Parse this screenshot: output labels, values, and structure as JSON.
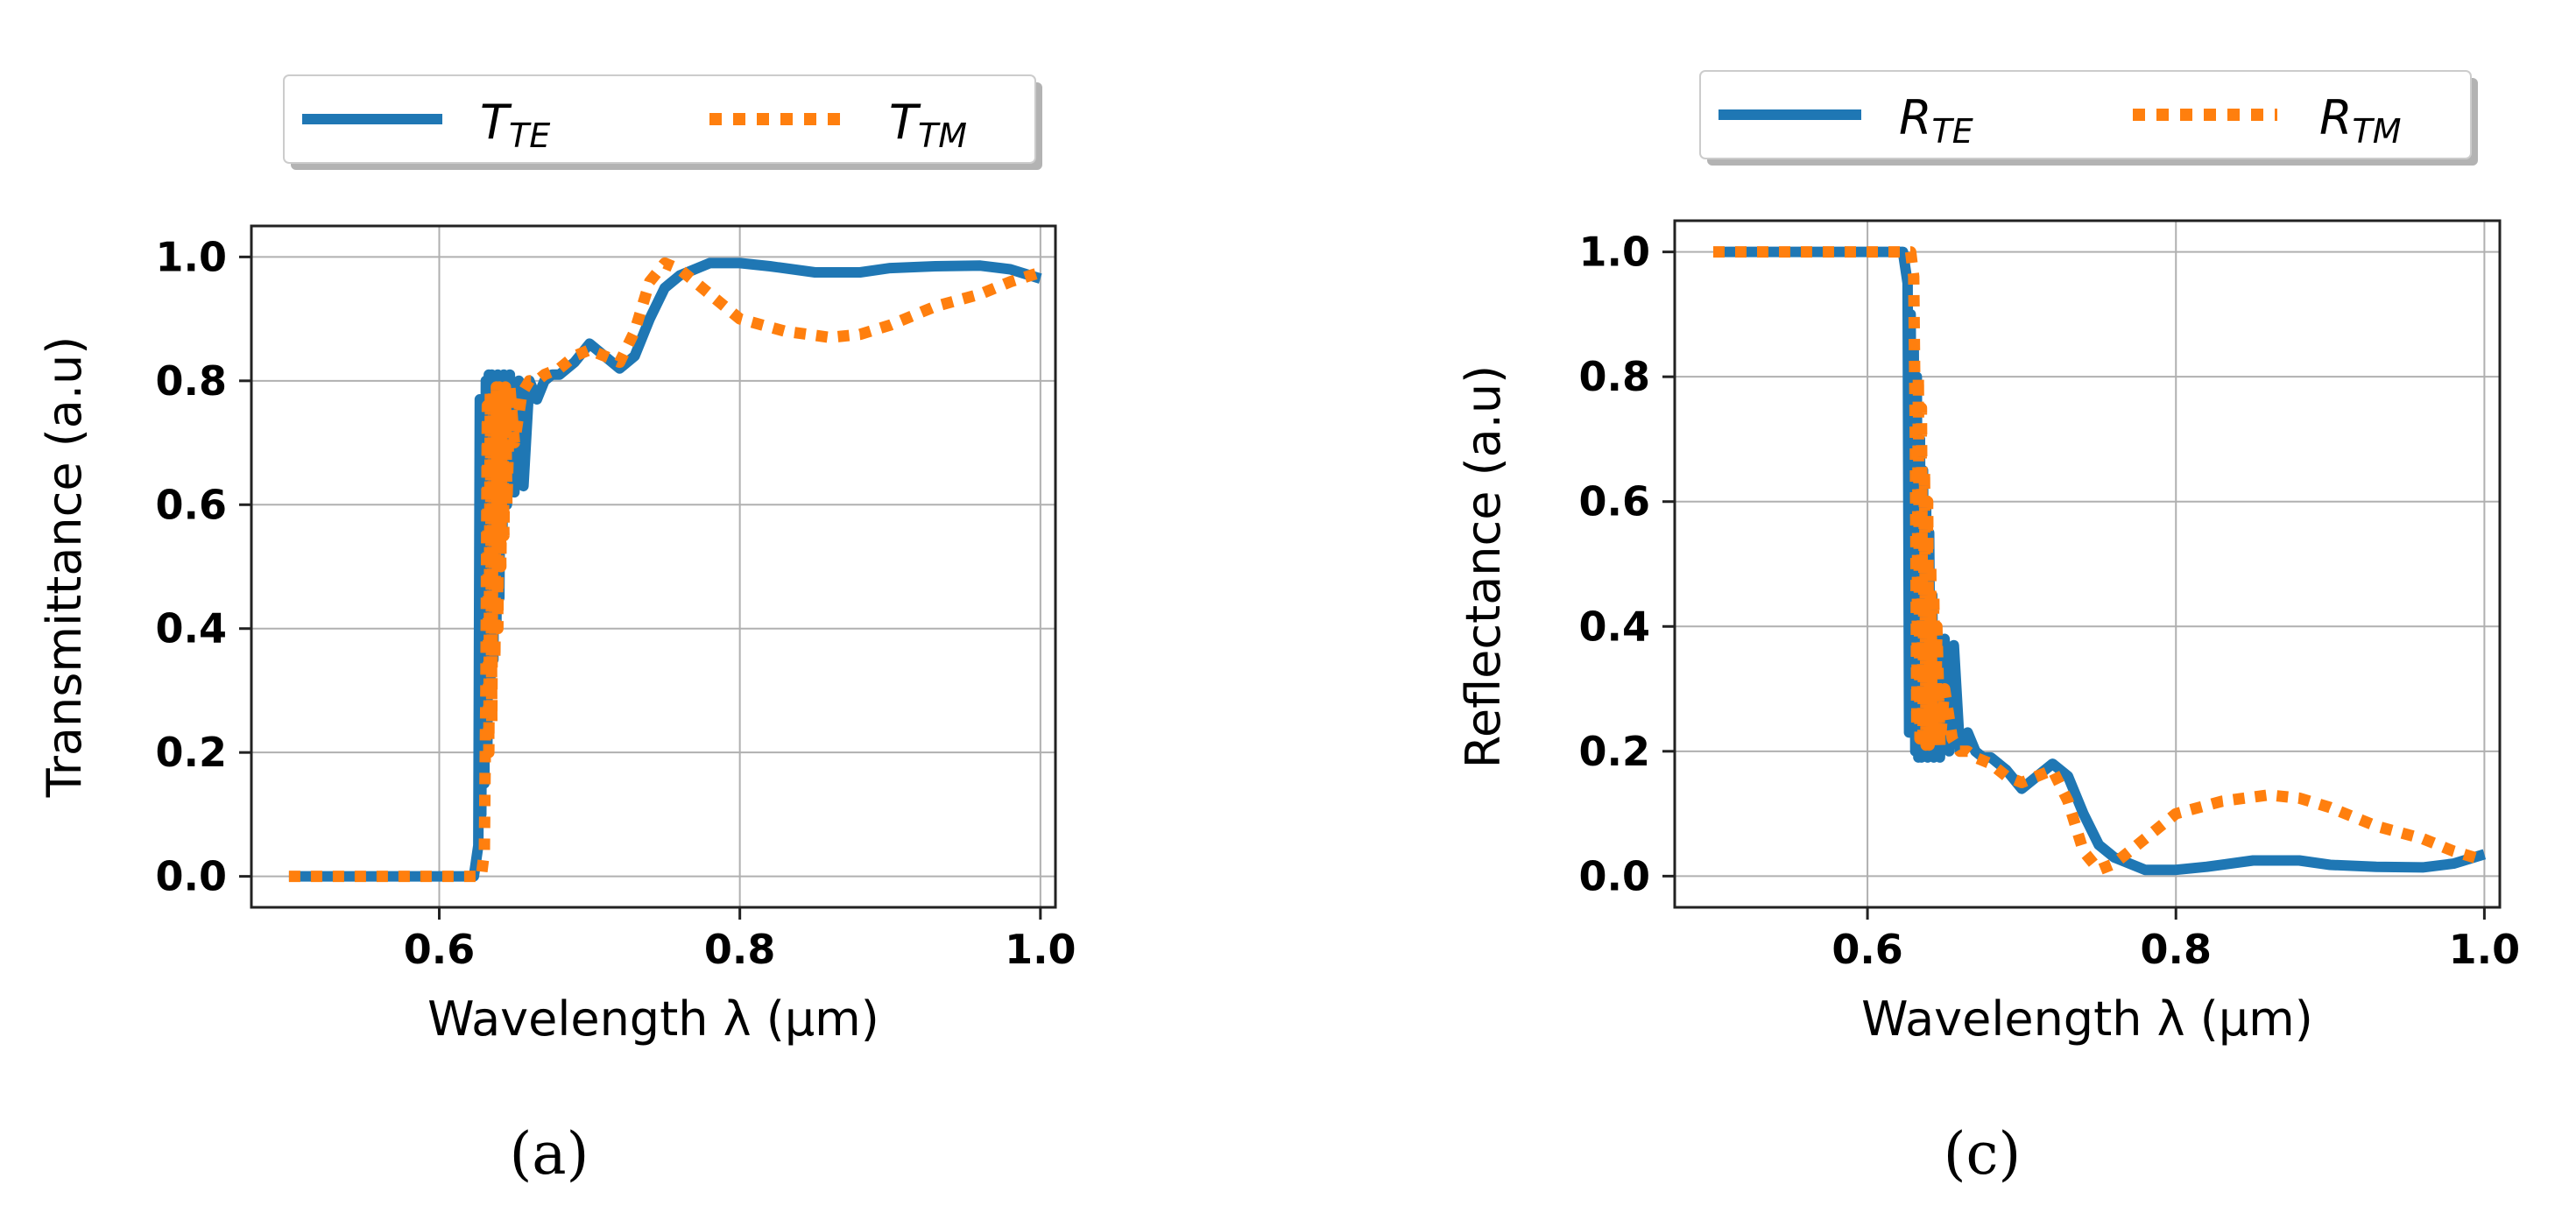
{
  "colors": {
    "te": "#1f77b4",
    "tm": "#ff7f0e",
    "grid": "#b0b0b0"
  },
  "chart_data": [
    {
      "type": "line",
      "panel": "a",
      "caption": "(a)",
      "xlabel": "Wavelength λ (μm)",
      "ylabel": "Transmittance (a.u)",
      "xlim": [
        0.475,
        1.01
      ],
      "ylim": [
        -0.05,
        1.05
      ],
      "xticks": [
        "0.6",
        "0.8",
        "1.0"
      ],
      "xtick_values": [
        0.6,
        0.8,
        1.0
      ],
      "yticks": [
        "0.0",
        "0.2",
        "0.4",
        "0.6",
        "0.8",
        "1.0"
      ],
      "ytick_values": [
        0.0,
        0.2,
        0.4,
        0.6,
        0.8,
        1.0
      ],
      "grid": true,
      "legend_position": "top-center (above plot)",
      "series": [
        {
          "name": "T_TE",
          "label_main": "T",
          "label_sub": "TE",
          "style": "solid",
          "x": [
            0.5,
            0.623,
            0.626,
            0.627,
            0.628,
            0.629,
            0.63,
            0.631,
            0.632,
            0.633,
            0.634,
            0.635,
            0.636,
            0.637,
            0.638,
            0.639,
            0.64,
            0.641,
            0.642,
            0.643,
            0.645,
            0.647,
            0.65,
            0.653,
            0.656,
            0.66,
            0.665,
            0.67,
            0.675,
            0.68,
            0.69,
            0.7,
            0.71,
            0.72,
            0.73,
            0.74,
            0.75,
            0.76,
            0.78,
            0.8,
            0.82,
            0.85,
            0.88,
            0.9,
            0.93,
            0.96,
            0.98,
            1.0
          ],
          "y": [
            0.0,
            0.0,
            0.05,
            0.77,
            0.1,
            0.76,
            0.15,
            0.8,
            0.2,
            0.81,
            0.3,
            0.81,
            0.35,
            0.8,
            0.4,
            0.81,
            0.45,
            0.8,
            0.55,
            0.81,
            0.6,
            0.81,
            0.62,
            0.8,
            0.63,
            0.8,
            0.77,
            0.8,
            0.81,
            0.81,
            0.83,
            0.86,
            0.84,
            0.82,
            0.84,
            0.9,
            0.95,
            0.97,
            0.99,
            0.99,
            0.985,
            0.975,
            0.975,
            0.982,
            0.985,
            0.986,
            0.98,
            0.965
          ]
        },
        {
          "name": "T_TM",
          "label_main": "T",
          "label_sub": "TM",
          "style": "dotted",
          "x": [
            0.5,
            0.628,
            0.63,
            0.631,
            0.632,
            0.633,
            0.634,
            0.635,
            0.636,
            0.637,
            0.638,
            0.639,
            0.64,
            0.641,
            0.642,
            0.643,
            0.644,
            0.645,
            0.647,
            0.65,
            0.655,
            0.66,
            0.665,
            0.67,
            0.68,
            0.69,
            0.7,
            0.71,
            0.72,
            0.73,
            0.74,
            0.75,
            0.76,
            0.78,
            0.8,
            0.83,
            0.86,
            0.88,
            0.9,
            0.93,
            0.96,
            0.98,
            1.0
          ],
          "y": [
            0.0,
            0.0,
            0.04,
            0.3,
            0.76,
            0.2,
            0.78,
            0.25,
            0.78,
            0.35,
            0.79,
            0.4,
            0.79,
            0.5,
            0.79,
            0.55,
            0.79,
            0.6,
            0.79,
            0.7,
            0.78,
            0.8,
            0.8,
            0.81,
            0.82,
            0.84,
            0.85,
            0.84,
            0.83,
            0.88,
            0.96,
            0.99,
            0.98,
            0.94,
            0.9,
            0.88,
            0.87,
            0.875,
            0.89,
            0.92,
            0.94,
            0.96,
            0.975
          ]
        }
      ]
    },
    {
      "type": "line",
      "panel": "c",
      "caption": "(c)",
      "xlabel": "Wavelength λ (μm)",
      "ylabel": "Reflectance (a.u)",
      "xlim": [
        0.475,
        1.01
      ],
      "ylim": [
        -0.05,
        1.05
      ],
      "xticks": [
        "0.6",
        "0.8",
        "1.0"
      ],
      "xtick_values": [
        0.6,
        0.8,
        1.0
      ],
      "yticks": [
        "0.0",
        "0.2",
        "0.4",
        "0.6",
        "0.8",
        "1.0"
      ],
      "ytick_values": [
        0.0,
        0.2,
        0.4,
        0.6,
        0.8,
        1.0
      ],
      "grid": true,
      "legend_position": "top-center (above plot)",
      "series": [
        {
          "name": "R_TE",
          "label_main": "R",
          "label_sub": "TE",
          "style": "solid",
          "x": [
            0.5,
            0.623,
            0.626,
            0.627,
            0.628,
            0.629,
            0.63,
            0.631,
            0.632,
            0.633,
            0.634,
            0.635,
            0.636,
            0.637,
            0.638,
            0.639,
            0.64,
            0.641,
            0.642,
            0.643,
            0.645,
            0.647,
            0.65,
            0.653,
            0.656,
            0.66,
            0.665,
            0.67,
            0.675,
            0.68,
            0.69,
            0.7,
            0.71,
            0.72,
            0.73,
            0.74,
            0.75,
            0.76,
            0.78,
            0.8,
            0.82,
            0.85,
            0.88,
            0.9,
            0.93,
            0.96,
            0.98,
            1.0
          ],
          "y": [
            1.0,
            1.0,
            0.95,
            0.23,
            0.9,
            0.24,
            0.85,
            0.2,
            0.8,
            0.19,
            0.7,
            0.19,
            0.65,
            0.2,
            0.6,
            0.19,
            0.55,
            0.2,
            0.45,
            0.19,
            0.4,
            0.19,
            0.38,
            0.2,
            0.37,
            0.2,
            0.23,
            0.2,
            0.19,
            0.19,
            0.17,
            0.14,
            0.16,
            0.18,
            0.16,
            0.1,
            0.05,
            0.03,
            0.01,
            0.01,
            0.015,
            0.025,
            0.025,
            0.018,
            0.015,
            0.014,
            0.02,
            0.035
          ]
        },
        {
          "name": "R_TM",
          "label_main": "R",
          "label_sub": "TM",
          "style": "dotted",
          "x": [
            0.5,
            0.628,
            0.63,
            0.631,
            0.632,
            0.633,
            0.634,
            0.635,
            0.636,
            0.637,
            0.638,
            0.639,
            0.64,
            0.641,
            0.642,
            0.643,
            0.644,
            0.645,
            0.647,
            0.65,
            0.655,
            0.66,
            0.665,
            0.67,
            0.68,
            0.69,
            0.7,
            0.71,
            0.72,
            0.73,
            0.74,
            0.75,
            0.76,
            0.78,
            0.8,
            0.83,
            0.86,
            0.88,
            0.9,
            0.93,
            0.96,
            0.98,
            1.0
          ],
          "y": [
            1.0,
            1.0,
            0.96,
            0.7,
            0.24,
            0.8,
            0.22,
            0.75,
            0.22,
            0.65,
            0.21,
            0.6,
            0.21,
            0.5,
            0.21,
            0.45,
            0.21,
            0.4,
            0.21,
            0.3,
            0.22,
            0.2,
            0.2,
            0.19,
            0.18,
            0.16,
            0.15,
            0.16,
            0.17,
            0.12,
            0.04,
            0.01,
            0.02,
            0.06,
            0.1,
            0.12,
            0.13,
            0.125,
            0.11,
            0.08,
            0.06,
            0.04,
            0.025
          ]
        }
      ]
    }
  ]
}
